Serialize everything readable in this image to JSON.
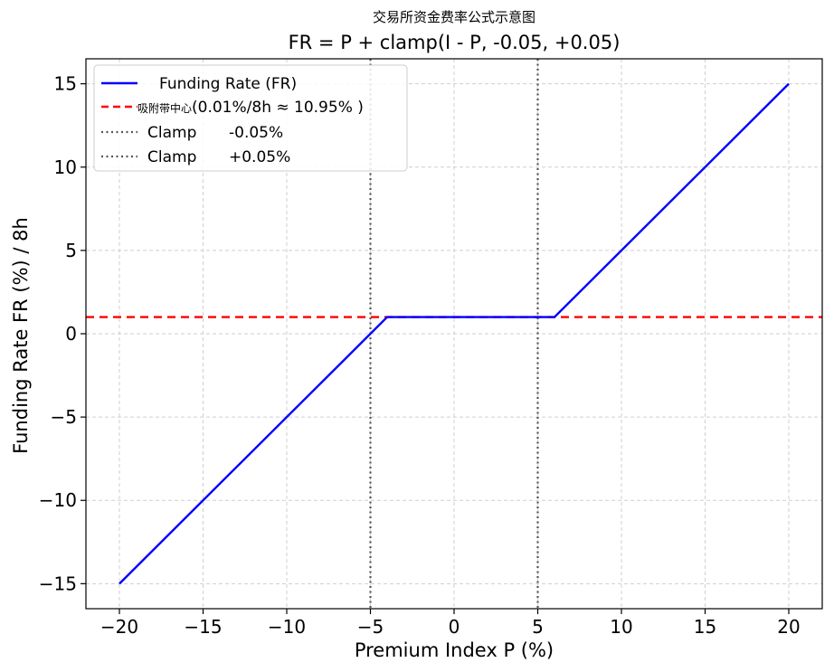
{
  "chart_data": {
    "type": "line",
    "suptitle": "交易所资金费率公式示意图",
    "title": "FR = P + clamp(I - P, -0.05, +0.05)",
    "xlabel": "Premium Index P (%)",
    "ylabel": "Funding Rate FR (%) / 8h",
    "xlim": [
      -22,
      22
    ],
    "ylim": [
      -16.5,
      16.5
    ],
    "x_ticks": [
      -20,
      -15,
      -10,
      -5,
      0,
      5,
      10,
      15,
      20
    ],
    "x_tick_labels": [
      "−20",
      "−15",
      "−10",
      "−5",
      "0",
      "5",
      "10",
      "15",
      "20"
    ],
    "y_ticks": [
      -15,
      -10,
      -5,
      0,
      5,
      10,
      15
    ],
    "y_tick_labels": [
      "−15",
      "−10",
      "−5",
      "0",
      "5",
      "10",
      "15"
    ],
    "grid": true,
    "legend_placement": "top-left",
    "series": [
      {
        "name": "Funding Rate (FR)",
        "style": "solid",
        "color": "#0000ff",
        "x": [
          -20,
          -4,
          6,
          20
        ],
        "y": [
          -15,
          1,
          1,
          15
        ]
      }
    ],
    "hlines": [
      {
        "name_cn": "吸附带中心",
        "name": "(0.01%/8h ≈ 10.95%    )",
        "y": 1,
        "style": "dashed",
        "color": "#ff0000"
      }
    ],
    "vlines": [
      {
        "name": "Clamp",
        "value_label": "-0.05%",
        "x": -5,
        "style": "dotted",
        "color": "#555555"
      },
      {
        "name": "Clamp",
        "value_label": "+0.05%",
        "x": 5,
        "style": "dotted",
        "color": "#555555"
      }
    ]
  }
}
